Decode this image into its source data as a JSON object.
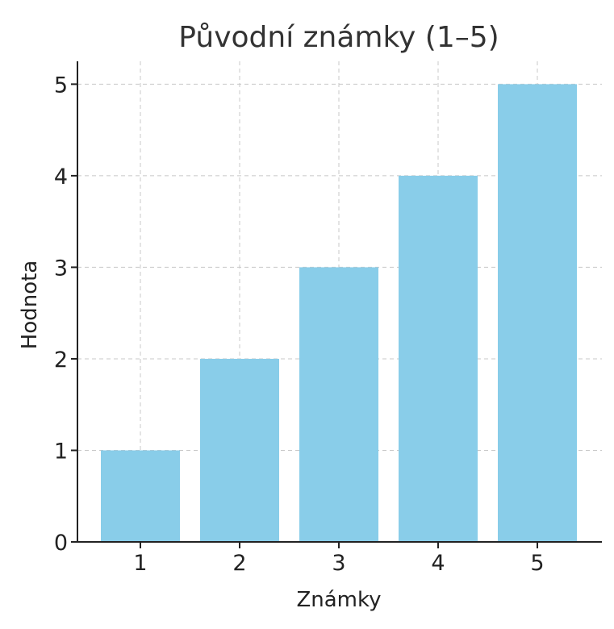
{
  "chart_data": {
    "type": "bar",
    "title": "Původní známky (1–5)",
    "xlabel": "Známky",
    "ylabel": "Hodnota",
    "categories": [
      "1",
      "2",
      "3",
      "4",
      "5"
    ],
    "values": [
      1,
      2,
      3,
      4,
      5
    ],
    "ylim": [
      0,
      5.25
    ],
    "yticks": [
      0,
      1,
      2,
      3,
      4,
      5
    ],
    "grid": true,
    "bar_color": "#89CDE9",
    "axis_color": "#222222",
    "grid_color": "#C8C8C8",
    "text_color": "#333333"
  }
}
